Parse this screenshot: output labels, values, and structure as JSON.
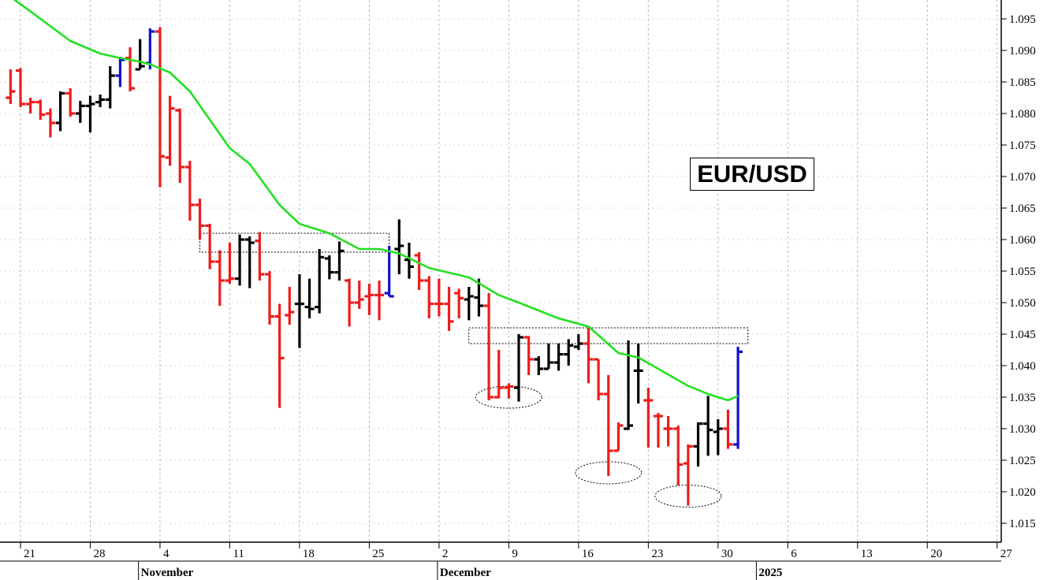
{
  "chart_data": {
    "type": "ohlc",
    "title": "EUR/USD",
    "ylim": [
      1.012,
      1.098
    ],
    "y_ticks": [
      1.015,
      1.02,
      1.025,
      1.03,
      1.035,
      1.04,
      1.045,
      1.05,
      1.055,
      1.06,
      1.065,
      1.07,
      1.075,
      1.08,
      1.085,
      1.09,
      1.095
    ],
    "y_tick_labels": [
      "1.015",
      "1.020",
      "1.025",
      "1.030",
      "1.035",
      "1.040",
      "1.045",
      "1.050",
      "1.055",
      "1.060",
      "1.065",
      "1.070",
      "1.075",
      "1.080",
      "1.085",
      "1.090",
      "1.095"
    ],
    "x_ticks": [
      {
        "day": 0,
        "label": "21"
      },
      {
        "day": 7,
        "label": "28"
      },
      {
        "day": 14,
        "label": "4"
      },
      {
        "day": 21,
        "label": "11"
      },
      {
        "day": 28,
        "label": "18"
      },
      {
        "day": 35,
        "label": "25"
      },
      {
        "day": 42,
        "label": "2"
      },
      {
        "day": 49,
        "label": "9"
      },
      {
        "day": 56,
        "label": "16"
      },
      {
        "day": 63,
        "label": "23"
      },
      {
        "day": 70,
        "label": "30"
      },
      {
        "day": 77,
        "label": "6"
      },
      {
        "day": 84,
        "label": "13"
      },
      {
        "day": 91,
        "label": "20"
      },
      {
        "day": 98,
        "label": "27"
      }
    ],
    "months": [
      {
        "day": 12,
        "label": "November"
      },
      {
        "day": 42,
        "label": "December"
      },
      {
        "day": 74,
        "label": "2025"
      }
    ],
    "colors": {
      "up": "#000000",
      "down": "#ee1c1c",
      "outside": "#1010d0",
      "ma": "#22e022",
      "grid": "#b8b8b8"
    },
    "bars": [
      {
        "day": -1,
        "o": 1.0825,
        "h": 1.087,
        "l": 1.0815,
        "c": 1.0835,
        "color": "down"
      },
      {
        "day": 0,
        "o": 1.0868,
        "h": 1.0872,
        "l": 1.081,
        "c": 1.0815,
        "color": "down"
      },
      {
        "day": 1,
        "o": 1.0815,
        "h": 1.0825,
        "l": 1.08,
        "c": 1.0818,
        "color": "down"
      },
      {
        "day": 2,
        "o": 1.0818,
        "h": 1.0822,
        "l": 1.079,
        "c": 1.0798,
        "color": "down"
      },
      {
        "day": 3,
        "o": 1.08,
        "h": 1.0808,
        "l": 1.0762,
        "c": 1.0785,
        "color": "down"
      },
      {
        "day": 4,
        "o": 1.0785,
        "h": 1.0835,
        "l": 1.0772,
        "c": 1.0832,
        "color": "up"
      },
      {
        "day": 5,
        "o": 1.0832,
        "h": 1.084,
        "l": 1.0795,
        "c": 1.08,
        "color": "down"
      },
      {
        "day": 6,
        "o": 1.08,
        "h": 1.082,
        "l": 1.0785,
        "c": 1.0812,
        "color": "up"
      },
      {
        "day": 7,
        "o": 1.0812,
        "h": 1.0828,
        "l": 1.077,
        "c": 1.0815,
        "color": "up"
      },
      {
        "day": 8,
        "o": 1.0818,
        "h": 1.083,
        "l": 1.081,
        "c": 1.0822,
        "color": "up"
      },
      {
        "day": 9,
        "o": 1.0822,
        "h": 1.0875,
        "l": 1.0808,
        "c": 1.086,
        "color": "up"
      },
      {
        "day": 10,
        "o": 1.086,
        "h": 1.089,
        "l": 1.0842,
        "c": 1.0885,
        "color": "outside"
      },
      {
        "day": 11,
        "o": 1.0888,
        "h": 1.0905,
        "l": 1.0835,
        "c": 1.084,
        "color": "down"
      },
      {
        "day": 12,
        "o": 1.087,
        "h": 1.0918,
        "l": 1.087,
        "c": 1.0875,
        "color": "up"
      },
      {
        "day": 13,
        "o": 1.088,
        "h": 1.0935,
        "l": 1.087,
        "c": 1.093,
        "color": "outside"
      },
      {
        "day": 14,
        "o": 1.093,
        "h": 1.0937,
        "l": 1.0683,
        "c": 1.0732,
        "color": "down"
      },
      {
        "day": 15,
        "o": 1.073,
        "h": 1.0828,
        "l": 1.0717,
        "c": 1.0808,
        "color": "down"
      },
      {
        "day": 16,
        "o": 1.0805,
        "h": 1.0808,
        "l": 1.069,
        "c": 1.0715,
        "color": "down"
      },
      {
        "day": 17,
        "o": 1.0715,
        "h": 1.0725,
        "l": 1.063,
        "c": 1.0655,
        "color": "down"
      },
      {
        "day": 18,
        "o": 1.0655,
        "h": 1.0665,
        "l": 1.06,
        "c": 1.0622,
        "color": "down"
      },
      {
        "day": 19,
        "o": 1.0622,
        "h": 1.0625,
        "l": 1.0553,
        "c": 1.0565,
        "color": "down"
      },
      {
        "day": 20,
        "o": 1.0565,
        "h": 1.0583,
        "l": 1.0495,
        "c": 1.0535,
        "color": "down"
      },
      {
        "day": 21,
        "o": 1.0535,
        "h": 1.0595,
        "l": 1.053,
        "c": 1.0538,
        "color": "down"
      },
      {
        "day": 22,
        "o": 1.0538,
        "h": 1.0608,
        "l": 1.0527,
        "c": 1.06,
        "color": "up"
      },
      {
        "day": 23,
        "o": 1.06,
        "h": 1.0605,
        "l": 1.0523,
        "c": 1.0595,
        "color": "up"
      },
      {
        "day": 24,
        "o": 1.0598,
        "h": 1.0612,
        "l": 1.0535,
        "c": 1.0545,
        "color": "down"
      },
      {
        "day": 25,
        "o": 1.0545,
        "h": 1.055,
        "l": 1.0465,
        "c": 1.0478,
        "color": "down"
      },
      {
        "day": 26,
        "o": 1.0478,
        "h": 1.0498,
        "l": 1.0333,
        "c": 1.0412,
        "color": "down"
      },
      {
        "day": 27,
        "o": 1.048,
        "h": 1.0525,
        "l": 1.0465,
        "c": 1.0485,
        "color": "down"
      },
      {
        "day": 28,
        "o": 1.0498,
        "h": 1.0545,
        "l": 1.0428,
        "c": 1.0498,
        "color": "up"
      },
      {
        "day": 29,
        "o": 1.0493,
        "h": 1.0538,
        "l": 1.0475,
        "c": 1.049,
        "color": "up"
      },
      {
        "day": 30,
        "o": 1.0493,
        "h": 1.0585,
        "l": 1.0483,
        "c": 1.0572,
        "color": "up"
      },
      {
        "day": 31,
        "o": 1.057,
        "h": 1.0575,
        "l": 1.0537,
        "c": 1.0548,
        "color": "up"
      },
      {
        "day": 32,
        "o": 1.0548,
        "h": 1.0597,
        "l": 1.0535,
        "c": 1.0582,
        "color": "up"
      },
      {
        "day": 33,
        "o": 1.0535,
        "h": 1.0538,
        "l": 1.0462,
        "c": 1.05,
        "color": "down"
      },
      {
        "day": 34,
        "o": 1.05,
        "h": 1.0535,
        "l": 1.049,
        "c": 1.0505,
        "color": "down"
      },
      {
        "day": 35,
        "o": 1.051,
        "h": 1.053,
        "l": 1.048,
        "c": 1.0512,
        "color": "down"
      },
      {
        "day": 36,
        "o": 1.0512,
        "h": 1.0535,
        "l": 1.0472,
        "c": 1.0512,
        "color": "down"
      },
      {
        "day": 37,
        "o": 1.0515,
        "h": 1.059,
        "l": 1.051,
        "c": 1.051,
        "color": "outside"
      },
      {
        "day": 38,
        "o": 1.0585,
        "h": 1.0632,
        "l": 1.0545,
        "c": 1.059,
        "color": "up"
      },
      {
        "day": 39,
        "o": 1.0568,
        "h": 1.0595,
        "l": 1.0538,
        "c": 1.0557,
        "color": "up"
      },
      {
        "day": 40,
        "o": 1.0575,
        "h": 1.058,
        "l": 1.052,
        "c": 1.0535,
        "color": "down"
      },
      {
        "day": 41,
        "o": 1.0535,
        "h": 1.0542,
        "l": 1.0475,
        "c": 1.0498,
        "color": "down"
      },
      {
        "day": 42,
        "o": 1.0498,
        "h": 1.0538,
        "l": 1.0478,
        "c": 1.0498,
        "color": "down"
      },
      {
        "day": 43,
        "o": 1.0498,
        "h": 1.0525,
        "l": 1.0455,
        "c": 1.047,
        "color": "down"
      },
      {
        "day": 44,
        "o": 1.0515,
        "h": 1.0522,
        "l": 1.0475,
        "c": 1.0507,
        "color": "down"
      },
      {
        "day": 45,
        "o": 1.0505,
        "h": 1.0525,
        "l": 1.0472,
        "c": 1.051,
        "color": "up"
      },
      {
        "day": 46,
        "o": 1.0508,
        "h": 1.0538,
        "l": 1.0478,
        "c": 1.0495,
        "color": "up"
      },
      {
        "day": 47,
        "o": 1.0495,
        "h": 1.0515,
        "l": 1.0345,
        "c": 1.035,
        "color": "down"
      },
      {
        "day": 48,
        "o": 1.035,
        "h": 1.0425,
        "l": 1.0348,
        "c": 1.0365,
        "color": "down"
      },
      {
        "day": 49,
        "o": 1.0365,
        "h": 1.0372,
        "l": 1.0348,
        "c": 1.0367,
        "color": "down"
      },
      {
        "day": 50,
        "o": 1.0365,
        "h": 1.045,
        "l": 1.0343,
        "c": 1.0445,
        "color": "up"
      },
      {
        "day": 51,
        "o": 1.0445,
        "h": 1.0447,
        "l": 1.0385,
        "c": 1.041,
        "color": "down"
      },
      {
        "day": 52,
        "o": 1.041,
        "h": 1.0415,
        "l": 1.0385,
        "c": 1.0395,
        "color": "up"
      },
      {
        "day": 53,
        "o": 1.0395,
        "h": 1.0435,
        "l": 1.0395,
        "c": 1.0405,
        "color": "up"
      },
      {
        "day": 54,
        "o": 1.0405,
        "h": 1.0435,
        "l": 1.0392,
        "c": 1.0418,
        "color": "up"
      },
      {
        "day": 55,
        "o": 1.0418,
        "h": 1.0442,
        "l": 1.04,
        "c": 1.0432,
        "color": "up"
      },
      {
        "day": 56,
        "o": 1.043,
        "h": 1.045,
        "l": 1.0425,
        "c": 1.0435,
        "color": "up"
      },
      {
        "day": 57,
        "o": 1.0435,
        "h": 1.046,
        "l": 1.0372,
        "c": 1.041,
        "color": "down"
      },
      {
        "day": 58,
        "o": 1.041,
        "h": 1.041,
        "l": 1.0345,
        "c": 1.0355,
        "color": "down"
      },
      {
        "day": 59,
        "o": 1.0355,
        "h": 1.0385,
        "l": 1.0225,
        "c": 1.0265,
        "color": "down"
      },
      {
        "day": 60,
        "o": 1.0265,
        "h": 1.031,
        "l": 1.0265,
        "c": 1.0305,
        "color": "down"
      },
      {
        "day": 61,
        "o": 1.03,
        "h": 1.044,
        "l": 1.0298,
        "c": 1.0305,
        "color": "up"
      },
      {
        "day": 62,
        "o": 1.0392,
        "h": 1.0435,
        "l": 1.034,
        "c": 1.0392,
        "color": "up"
      },
      {
        "day": 63,
        "o": 1.0345,
        "h": 1.0365,
        "l": 1.027,
        "c": 1.0345,
        "color": "down"
      },
      {
        "day": 64,
        "o": 1.032,
        "h": 1.0325,
        "l": 1.027,
        "c": 1.032,
        "color": "down"
      },
      {
        "day": 65,
        "o": 1.03,
        "h": 1.032,
        "l": 1.0272,
        "c": 1.03,
        "color": "down"
      },
      {
        "day": 66,
        "o": 1.03,
        "h": 1.0305,
        "l": 1.021,
        "c": 1.0243,
        "color": "down"
      },
      {
        "day": 67,
        "o": 1.0245,
        "h": 1.0275,
        "l": 1.0178,
        "c": 1.0272,
        "color": "down"
      },
      {
        "day": 68,
        "o": 1.0272,
        "h": 1.031,
        "l": 1.024,
        "c": 1.0308,
        "color": "up"
      },
      {
        "day": 69,
        "o": 1.0308,
        "h": 1.0352,
        "l": 1.0257,
        "c": 1.0298,
        "color": "up"
      },
      {
        "day": 70,
        "o": 1.0295,
        "h": 1.0315,
        "l": 1.0258,
        "c": 1.03,
        "color": "up"
      },
      {
        "day": 71,
        "o": 1.03,
        "h": 1.033,
        "l": 1.0268,
        "c": 1.0275,
        "color": "down"
      },
      {
        "day": 72,
        "o": 1.0275,
        "h": 1.043,
        "l": 1.0268,
        "c": 1.0422,
        "color": "outside"
      }
    ],
    "moving_average": [
      {
        "day": -1,
        "v": 1.0985
      },
      {
        "day": 1,
        "v": 1.0962
      },
      {
        "day": 5,
        "v": 1.0915
      },
      {
        "day": 8,
        "v": 1.0895
      },
      {
        "day": 10,
        "v": 1.0888
      },
      {
        "day": 12,
        "v": 1.0882
      },
      {
        "day": 13,
        "v": 1.0878
      },
      {
        "day": 15,
        "v": 1.0865
      },
      {
        "day": 17,
        "v": 1.0835
      },
      {
        "day": 19,
        "v": 1.079
      },
      {
        "day": 21,
        "v": 1.0745
      },
      {
        "day": 23,
        "v": 1.072
      },
      {
        "day": 26,
        "v": 1.0655
      },
      {
        "day": 28,
        "v": 1.0625
      },
      {
        "day": 31,
        "v": 1.061
      },
      {
        "day": 34,
        "v": 1.0585
      },
      {
        "day": 36,
        "v": 1.0585
      },
      {
        "day": 38,
        "v": 1.0578
      },
      {
        "day": 41,
        "v": 1.0555
      },
      {
        "day": 45,
        "v": 1.054
      },
      {
        "day": 48,
        "v": 1.0512
      },
      {
        "day": 50,
        "v": 1.05
      },
      {
        "day": 54,
        "v": 1.0475
      },
      {
        "day": 57,
        "v": 1.0462
      },
      {
        "day": 60,
        "v": 1.042
      },
      {
        "day": 62,
        "v": 1.0413
      },
      {
        "day": 67,
        "v": 1.0368
      },
      {
        "day": 69,
        "v": 1.0355
      },
      {
        "day": 71,
        "v": 1.0345
      },
      {
        "day": 72,
        "v": 1.0352
      }
    ],
    "resistance_boxes": [
      {
        "day_start": 18,
        "day_end": 37,
        "low": 1.058,
        "high": 1.061
      },
      {
        "day_start": 45,
        "day_end": 73,
        "low": 1.0435,
        "high": 1.046
      }
    ],
    "low_ellipses": [
      {
        "day": 49,
        "price": 1.035
      },
      {
        "day": 59,
        "price": 1.023
      },
      {
        "day": 67,
        "price": 1.0193
      }
    ]
  }
}
